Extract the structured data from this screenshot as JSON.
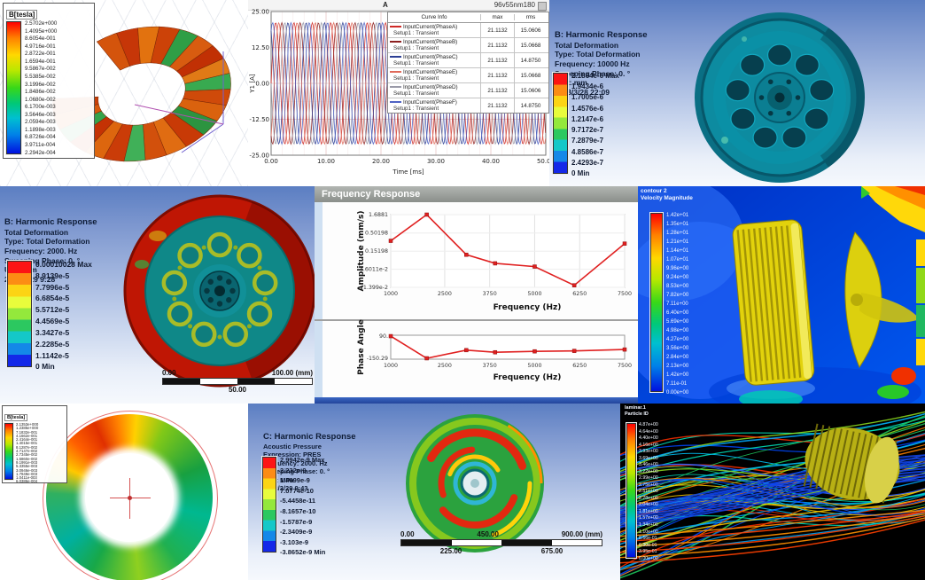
{
  "panel_torus": {
    "legend_title": "B[tesla]",
    "legend_values": [
      "2.5702e+000",
      "1.4095e+000",
      "8.6054e-001",
      "4.9716e-001",
      "2.8722e-001",
      "1.6594e-001",
      "9.5867e-002",
      "5.5385e-002",
      "3.1996e-002",
      "1.8486e-002",
      "1.0680e-002",
      "6.1700e-003",
      "3.5646e-003",
      "2.0594e-003",
      "1.1898e-003",
      "6.8726e-004",
      "3.9711e-004",
      "2.2942e-004"
    ]
  },
  "panel_currents": {
    "corner_label": "A",
    "plot_title": "96v55nm180",
    "table": {
      "headers": [
        "Curve Info",
        "max",
        "rms"
      ],
      "rows": [
        {
          "name": "InputCurrent(PhaseA)",
          "setup": "Setup1 : Transient",
          "max": "21.1132",
          "rms": "15.0606",
          "color": "#cf2a27"
        },
        {
          "name": "InputCurrent(PhaseB)",
          "setup": "Setup1 : Transient",
          "max": "21.1132",
          "rms": "15.0668",
          "color": "#8c1f1f"
        },
        {
          "name": "InputCurrent(PhaseC)",
          "setup": "Setup1 : Transient",
          "max": "21.1132",
          "rms": "14.8750",
          "color": "#2c3e94"
        },
        {
          "name": "InputCurrent(PhaseE)",
          "setup": "Setup1 : Transient",
          "max": "21.1132",
          "rms": "15.0668",
          "color": "#e06a5a"
        },
        {
          "name": "InputCurrent(PhaseD)",
          "setup": "Setup1 : Transient",
          "max": "21.1132",
          "rms": "15.0606",
          "color": "#9a9aa8"
        },
        {
          "name": "InputCurrent(PhaseF)",
          "setup": "Setup1 : Transient",
          "max": "21.1132",
          "rms": "14.8750",
          "color": "#4f63c4"
        }
      ]
    }
  },
  "panel_harmonic_10000": {
    "header_lines": [
      "B: Harmonic Response",
      "Total Deformation",
      "Type: Total Deformation",
      "Frequency: 10000 Hz",
      "Sweeping Phase: 0. °",
      "Unit: mm",
      "2018/3/28 22:09"
    ],
    "legend_values": [
      "2.1864e-6 Max",
      "1.9434e-6",
      "1.7005e-6",
      "1.4576e-6",
      "1.2147e-6",
      "9.7172e-7",
      "7.2879e-7",
      "4.8586e-7",
      "2.4293e-7",
      "0 Min"
    ]
  },
  "panel_harmonic_2000": {
    "header_lines": [
      "B: Harmonic Response",
      "Total Deformation",
      "Type: Total Deformation",
      "Frequency: 2000. Hz",
      "Sweeping Phase: 0. °",
      "Unit: mm",
      "2018/3/29 9:28"
    ],
    "legend_values": [
      "0.00010028 Max",
      "8.9139e-5",
      "7.7996e-5",
      "6.6854e-5",
      "5.5712e-5",
      "4.4569e-5",
      "3.3427e-5",
      "2.2285e-5",
      "1.1142e-5",
      "0 Min"
    ],
    "ruler": {
      "top": [
        "0.00",
        "100.00 (mm)"
      ],
      "bottom": [
        "50.00"
      ]
    }
  },
  "panel_freq_response": {
    "window_title": "Frequency Response"
  },
  "panel_cfd": {
    "legend_title_line1": "contour 2",
    "legend_title_line2": "Velocity Magnitude",
    "legend_values": [
      "1.42e+01",
      "1.35e+01",
      "1.28e+01",
      "1.21e+01",
      "1.14e+01",
      "1.07e+01",
      "9.96e+00",
      "9.24e+00",
      "8.53e+00",
      "7.82e+00",
      "7.11e+00",
      "6.40e+00",
      "5.69e+00",
      "4.98e+00",
      "4.27e+00",
      "3.56e+00",
      "2.84e+00",
      "2.13e+00",
      "1.42e+00",
      "7.11e-01",
      "0.00e+00"
    ]
  },
  "panel_rotor_field": {
    "legend_title": "B[tesla]",
    "legend_values": [
      "2.1353e+000",
      "1.2385e+000",
      "7.1832e-001",
      "4.1662e-001",
      "2.4164e-001",
      "1.4015e-001",
      "8.1287e-002",
      "4.7147e-002",
      "2.7345e-002",
      "1.5860e-002",
      "9.1991e-003",
      "5.3355e-003",
      "3.0946e-003",
      "1.7949e-003",
      "1.0411e-003",
      "6.0386e-004"
    ]
  },
  "panel_acoustic": {
    "header_lines": [
      "C: Harmonic Response",
      "Acoustic Pressure",
      "Expression: PRES",
      "Frequency: 2000. Hz",
      "Sweeping Phase: 0. °",
      "Unit: MPa",
      "2018/3/29 9:43"
    ],
    "legend_values": [
      "2.9942e-9 Max",
      "2.232e-9",
      "1.4699e-9",
      "7.0774e-10",
      "-5.4458e-11",
      "-8.1657e-10",
      "-1.5787e-9",
      "-2.3409e-9",
      "-3.103e-9",
      "-3.8652e-9 Min"
    ],
    "ruler": {
      "top": [
        "0.00",
        "450.00",
        "900.00 (mm)"
      ],
      "bottom": [
        "225.00",
        "675.00"
      ]
    }
  },
  "panel_streamlines": {
    "legend_title_line1": "laminar.1",
    "legend_title_line2": "Particle ID",
    "legend_values": [
      "4.87e+00",
      "4.64e+00",
      "4.40e+00",
      "4.16e+00",
      "3.93e+00",
      "3.69e+00",
      "3.46e+00",
      "3.22e+00",
      "2.99e+00",
      "2.75e+00",
      "2.51e+00",
      "2.28e+00",
      "2.04e+00",
      "1.81e+00",
      "1.57e+00",
      "1.34e+00",
      "1.10e+00",
      "8.66e-01",
      "6.30e-01",
      "3.95e-01",
      "0.00e+00"
    ]
  },
  "chart_data": [
    {
      "id": "winding_currents",
      "type": "line",
      "title": "96v55nm180",
      "xlabel": "Time [ms]",
      "ylabel": "Y1 [A]",
      "xlim": [
        0,
        50
      ],
      "ylim": [
        -25,
        25
      ],
      "xticks": [
        0,
        10,
        20,
        30,
        40,
        50
      ],
      "yticks": [
        25,
        12.5,
        0,
        -12.5,
        -25
      ],
      "grid": true,
      "series": [
        {
          "name": "InputCurrent(PhaseA)",
          "color": "#cf2a27",
          "amplitude": 21.1132,
          "period_ms": 3.3333,
          "phase_deg": 0,
          "max": 21.1132,
          "rms": 15.0606
        },
        {
          "name": "InputCurrent(PhaseB)",
          "color": "#8c1f1f",
          "amplitude": 21.1132,
          "period_ms": 3.3333,
          "phase_deg": -120,
          "max": 21.1132,
          "rms": 15.0668
        },
        {
          "name": "InputCurrent(PhaseC)",
          "color": "#2c3e94",
          "amplitude": 21.1132,
          "period_ms": 3.3333,
          "phase_deg": -240,
          "max": 21.1132,
          "rms": 14.875
        },
        {
          "name": "InputCurrent(PhaseE)",
          "color": "#e06a5a",
          "amplitude": 21.1132,
          "period_ms": 3.3333,
          "phase_deg": -60,
          "max": 21.1132,
          "rms": 15.0668
        },
        {
          "name": "InputCurrent(PhaseD)",
          "color": "#9a9aa8",
          "amplitude": 21.1132,
          "period_ms": 3.3333,
          "phase_deg": -180,
          "max": 21.1132,
          "rms": 15.0606
        },
        {
          "name": "InputCurrent(PhaseF)",
          "color": "#4f63c4",
          "amplitude": 21.1132,
          "period_ms": 3.3333,
          "phase_deg": -300,
          "max": 21.1132,
          "rms": 14.875
        }
      ]
    },
    {
      "id": "freq_amplitude",
      "type": "line",
      "ylabel": "Amplitude (mm/s)",
      "xlabel": "Frequency (Hz)",
      "yscale": "log",
      "xlim": [
        1000,
        7500
      ],
      "xticks": [
        1000,
        2500,
        3750,
        5000,
        6250,
        7500
      ],
      "ytick_labels": [
        "1.6881",
        "0.50198",
        "0.15198",
        "4.6011e-2",
        "1.399e-2"
      ],
      "x": [
        1000,
        2000,
        3100,
        3900,
        5000,
        6100,
        7500
      ],
      "y": [
        0.3,
        1.6881,
        0.12,
        0.068,
        0.055,
        0.016,
        0.25
      ],
      "line_color": "#e02020",
      "grid": true
    },
    {
      "id": "freq_phase",
      "type": "line",
      "ylabel": "Phase Angle",
      "xlabel": "Frequency (Hz)",
      "ylim": [
        -160,
        100
      ],
      "xticks": [
        1000,
        2500,
        3750,
        5000,
        6250,
        7500
      ],
      "ytick_labels": [
        "90.",
        "-150.29"
      ],
      "x": [
        1000,
        2000,
        3100,
        3900,
        5000,
        6100,
        7500
      ],
      "y": [
        90,
        -150.29,
        -62,
        -85,
        -75,
        -70,
        -55
      ],
      "line_color": "#e02020",
      "grid": false
    }
  ]
}
